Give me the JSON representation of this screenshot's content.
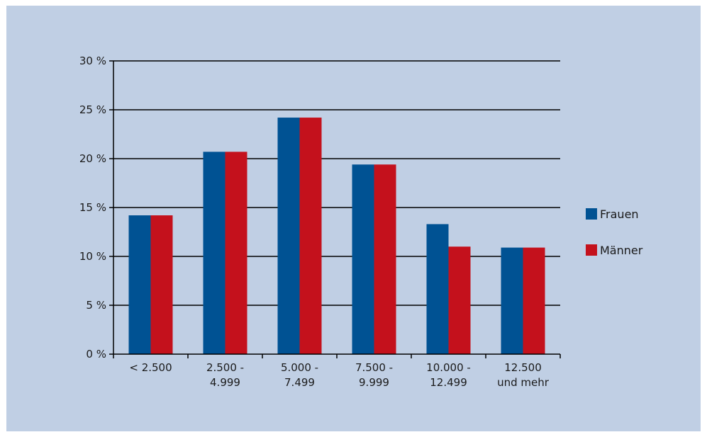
{
  "chart_data": {
    "type": "bar",
    "title": "",
    "xlabel": "",
    "ylabel": "",
    "categories": [
      [
        "< 2.500"
      ],
      [
        "2.500 -",
        "4.999"
      ],
      [
        "5.000 -",
        "7.499"
      ],
      [
        "7.500 -",
        "9.999"
      ],
      [
        "10.000 -",
        "12.499"
      ],
      [
        "12.500",
        "und mehr"
      ]
    ],
    "series": [
      {
        "name": "Frauen",
        "color": "#005293",
        "values": [
          14.2,
          20.7,
          24.2,
          19.4,
          13.3,
          10.9
        ]
      },
      {
        "name": "Männer",
        "color": "#c4111c",
        "values": [
          14.2,
          20.7,
          24.2,
          19.4,
          11.0,
          10.9
        ]
      }
    ],
    "ylim": [
      0,
      30
    ],
    "yticks": [
      0,
      5,
      10,
      15,
      20,
      25,
      30
    ],
    "ytick_labels": [
      "0 %",
      "5 %",
      "10 %",
      "15 %",
      "20 %",
      "25 %",
      "30 %"
    ],
    "grid": true,
    "legend": "right"
  }
}
